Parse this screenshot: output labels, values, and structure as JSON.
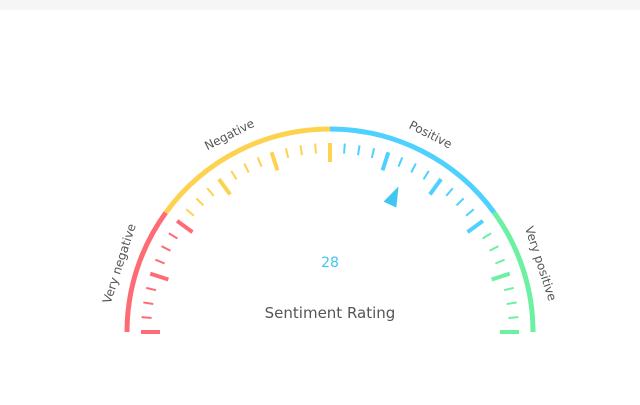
{
  "gauge": {
    "title": "Sentiment Rating",
    "value": 28,
    "min": -100,
    "max": 100,
    "segments": [
      {
        "name": "very-negative",
        "label": "Very negative",
        "from": -100,
        "to": -60,
        "color": "#ff6b75"
      },
      {
        "name": "negative",
        "label": "Negative",
        "from": -60,
        "to": 0,
        "color": "#fcd24f"
      },
      {
        "name": "positive",
        "label": "Positive",
        "from": 0,
        "to": 60,
        "color": "#4fd1ff"
      },
      {
        "name": "very-positive",
        "label": "Very positive",
        "from": 60,
        "to": 100,
        "color": "#6cf0a2"
      }
    ],
    "colors": {
      "value_text": "#41c6f2",
      "title_text": "#555555",
      "label_text": "#555555",
      "pointer": "#41c6f2"
    }
  }
}
